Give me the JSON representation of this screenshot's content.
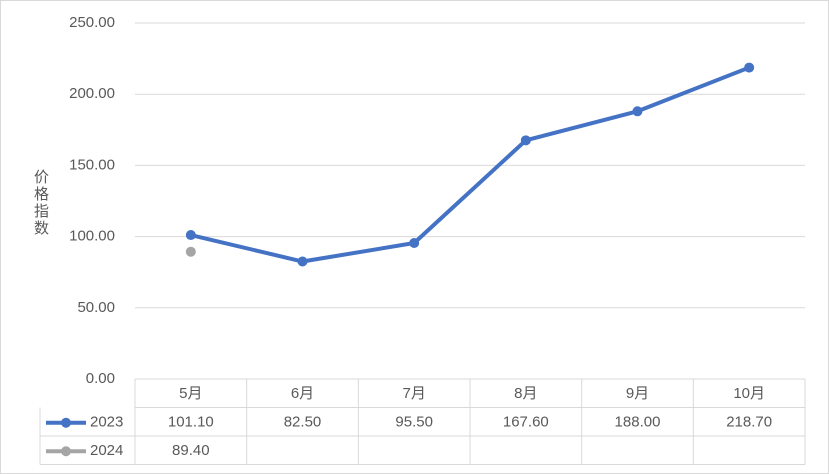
{
  "chart_data": {
    "type": "line",
    "y_label": "价格指数",
    "categories": [
      "5月",
      "6月",
      "7月",
      "8月",
      "9月",
      "10月"
    ],
    "series": [
      {
        "name": "2023",
        "color": "#4472c4",
        "values": [
          101.1,
          82.5,
          95.5,
          167.6,
          188.0,
          218.7
        ],
        "value_labels": [
          "101.10",
          "82.50",
          "95.50",
          "167.60",
          "188.00",
          "218.70"
        ]
      },
      {
        "name": "2024",
        "color": "#a5a5a5",
        "values": [
          89.4,
          null,
          null,
          null,
          null,
          null
        ],
        "value_labels": [
          "89.40",
          null,
          null,
          null,
          null,
          null
        ]
      }
    ],
    "ylim": [
      0,
      250
    ],
    "yticks": [
      {
        "value": 0,
        "label": "0.00"
      },
      {
        "value": 50,
        "label": "50.00"
      },
      {
        "value": 100,
        "label": "100.00"
      },
      {
        "value": 150,
        "label": "150.00"
      },
      {
        "value": 200,
        "label": "200.00"
      },
      {
        "value": 250,
        "label": "250.00"
      }
    ],
    "grid": true,
    "data_table": true
  }
}
